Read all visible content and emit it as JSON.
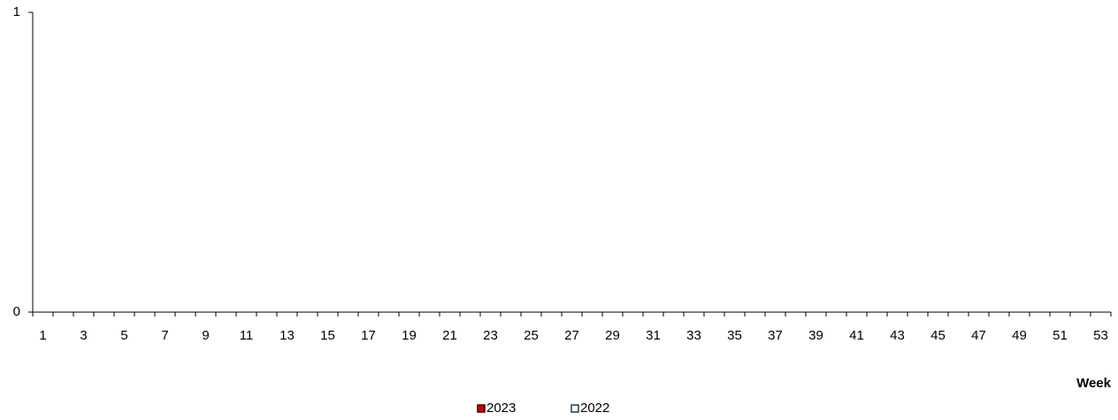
{
  "chart_data": {
    "type": "bar",
    "x_label": "Week",
    "categories": [
      "1",
      null,
      "3",
      null,
      "5",
      null,
      "7",
      null,
      "9",
      null,
      "11",
      null,
      "13",
      null,
      "15",
      null,
      "17",
      null,
      "19",
      null,
      "21",
      null,
      "23",
      null,
      "25",
      null,
      "27",
      null,
      "29",
      null,
      "31",
      null,
      "33",
      null,
      "35",
      null,
      "37",
      null,
      "39",
      null,
      "41",
      null,
      "43",
      null,
      "45",
      null,
      "47",
      null,
      "49",
      null,
      "51",
      null,
      "53"
    ],
    "series": [
      {
        "name": "2023",
        "color": "#cc0000",
        "values": [
          0,
          0,
          0,
          0,
          0,
          0,
          0,
          0,
          0,
          0,
          0,
          0,
          0,
          0,
          0,
          0,
          0,
          0,
          0,
          0,
          0,
          0,
          0,
          0,
          0,
          0,
          0,
          0,
          0,
          0,
          0,
          0,
          0,
          0,
          0,
          0,
          0,
          0,
          0,
          0,
          0,
          0,
          0,
          0,
          0,
          0,
          0,
          0,
          0,
          0,
          0,
          0,
          0
        ]
      },
      {
        "name": "2022",
        "color": "#ffffff",
        "values": [
          0,
          0,
          0,
          0,
          0,
          0,
          0,
          0,
          0,
          0,
          0,
          0,
          0,
          0,
          0,
          0,
          0,
          0,
          0,
          0,
          0,
          0,
          0,
          0,
          0,
          0,
          0,
          0,
          0,
          0,
          0,
          0,
          0,
          0,
          0,
          0,
          0,
          0,
          0,
          0,
          0,
          0,
          0,
          0,
          0,
          0,
          0,
          0,
          0,
          0,
          0,
          0,
          0
        ]
      }
    ],
    "ylim": [
      0,
      1
    ],
    "yticks": [
      0,
      1
    ],
    "grid": false
  }
}
